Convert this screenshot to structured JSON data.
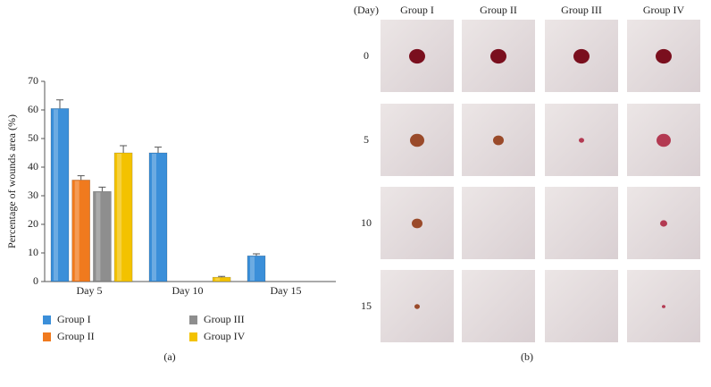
{
  "chart_data": {
    "type": "bar",
    "y_label": "Percentage of wounds area (%)",
    "panel_label": "(a)",
    "categories": [
      "Day 5",
      "Day 10",
      "Day 15"
    ],
    "series": [
      {
        "name": "Group I",
        "color": "#3b8fd9",
        "values": [
          60.5,
          45,
          9
        ],
        "errors": [
          3,
          2,
          0.7
        ]
      },
      {
        "name": "Group II",
        "color": "#f07a1e",
        "values": [
          35.5,
          0,
          0
        ],
        "errors": [
          1.5,
          null,
          null
        ]
      },
      {
        "name": "Group III",
        "color": "#8e8e8e",
        "values": [
          31.5,
          0,
          0
        ],
        "errors": [
          1.5,
          null,
          null
        ]
      },
      {
        "name": "Group IV",
        "color": "#f3c200",
        "values": [
          45,
          1.5,
          0
        ],
        "errors": [
          2.5,
          0.3,
          null
        ]
      }
    ],
    "ylim": [
      0,
      70
    ],
    "yticks": [
      0,
      10,
      20,
      30,
      40,
      50,
      60,
      70
    ],
    "legend": "bottom"
  },
  "panel_b": {
    "row_header": "(Day)",
    "columns": [
      "Group I",
      "Group II",
      "Group III",
      "Group IV"
    ],
    "rows": [
      "0",
      "5",
      "10",
      "15"
    ],
    "panel_label": "(b)"
  }
}
